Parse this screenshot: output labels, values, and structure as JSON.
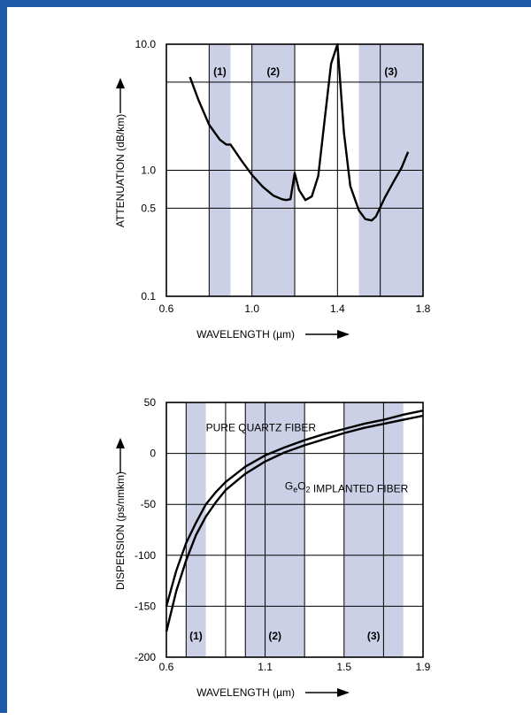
{
  "chart_data": [
    {
      "type": "line",
      "title": "",
      "xlabel": "WAVELENGTH (µm)",
      "ylabel": "ATTENUATION (dB/km)",
      "xlim": [
        0.6,
        1.8
      ],
      "ylim": [
        0.1,
        10.0
      ],
      "yscale": "log",
      "x_ticks": [
        0.6,
        1.0,
        1.4,
        1.8
      ],
      "x_tick_labels": [
        "0.6",
        "1.0",
        "1.4",
        "1.8"
      ],
      "y_ticks": [
        0.1,
        0.5,
        1.0,
        10.0
      ],
      "y_tick_labels": [
        "0.1",
        "0.5",
        "1.0",
        "10.0"
      ],
      "x_gridlines": [
        0.6,
        0.8,
        1.0,
        1.2,
        1.4,
        1.6,
        1.8
      ],
      "y_gridlines": [
        0.1,
        0.5,
        1.0,
        5.0,
        10.0
      ],
      "grid": true,
      "bands": [
        {
          "label": "(1)",
          "from": 0.8,
          "to": 0.9
        },
        {
          "label": "(2)",
          "from": 1.0,
          "to": 1.2
        },
        {
          "label": "(3)",
          "from": 1.5,
          "to": 1.8
        }
      ],
      "series": [
        {
          "x": [
            0.71,
            0.75,
            0.8,
            0.85,
            0.88,
            0.9,
            0.95,
            1.0,
            1.05,
            1.1,
            1.14,
            1.16,
            1.18,
            1.2,
            1.22,
            1.25,
            1.28,
            1.31,
            1.34,
            1.37,
            1.4,
            1.43,
            1.46,
            1.5,
            1.53,
            1.56,
            1.58,
            1.62,
            1.66,
            1.7,
            1.73
          ],
          "y": [
            5.5,
            3.6,
            2.3,
            1.75,
            1.6,
            1.6,
            1.2,
            0.92,
            0.74,
            0.63,
            0.59,
            0.58,
            0.59,
            0.95,
            0.7,
            0.58,
            0.62,
            0.9,
            2.5,
            7.0,
            10.0,
            2.0,
            0.75,
            0.48,
            0.41,
            0.4,
            0.43,
            0.6,
            0.8,
            1.05,
            1.4
          ]
        }
      ]
    },
    {
      "type": "line",
      "title": "",
      "xlabel": "WAVELENGTH (µm)",
      "ylabel": "DISPERSION (ps/nmkm)",
      "xlim": [
        0.6,
        1.9
      ],
      "ylim": [
        -200,
        50
      ],
      "x_ticks": [
        0.6,
        1.1,
        1.5,
        1.9
      ],
      "x_tick_labels": [
        "0.6",
        "1.1",
        "1.5",
        "1.9"
      ],
      "y_ticks": [
        -200,
        -150,
        -100,
        -50,
        0,
        50
      ],
      "y_tick_labels": [
        "-200",
        "-150",
        "-100",
        "-50",
        "0",
        "50"
      ],
      "x_gridlines": [
        0.6,
        0.7,
        0.9,
        1.0,
        1.1,
        1.3,
        1.5,
        1.7,
        1.9
      ],
      "y_gridlines": [
        -200,
        -150,
        -100,
        -50,
        0,
        50
      ],
      "grid": true,
      "bands": [
        {
          "label": "(1)",
          "from": 0.7,
          "to": 0.8
        },
        {
          "label": "(2)",
          "from": 1.0,
          "to": 1.3
        },
        {
          "label": "(3)",
          "from": 1.5,
          "to": 1.8
        }
      ],
      "series": [
        {
          "name": "PURE QUARTZ FIBER",
          "x": [
            0.6,
            0.65,
            0.7,
            0.75,
            0.8,
            0.85,
            0.9,
            1.0,
            1.1,
            1.2,
            1.3,
            1.4,
            1.5,
            1.6,
            1.7,
            1.8,
            1.9
          ],
          "y": [
            -150,
            -115,
            -88,
            -68,
            -50,
            -38,
            -28,
            -13,
            -2,
            6,
            13,
            19,
            24,
            29,
            33,
            38,
            42
          ]
        },
        {
          "name": "GeO2 IMPLANTED FIBER",
          "x": [
            0.6,
            0.65,
            0.7,
            0.75,
            0.8,
            0.85,
            0.9,
            1.0,
            1.1,
            1.2,
            1.3,
            1.4,
            1.5,
            1.6,
            1.7,
            1.8,
            1.9
          ],
          "y": [
            -175,
            -135,
            -105,
            -80,
            -62,
            -48,
            -36,
            -20,
            -8,
            1,
            8,
            14,
            20,
            25,
            29,
            33,
            37
          ]
        }
      ],
      "annotations": [
        {
          "text": "PURE QUARTZ FIBER",
          "series": "PURE QUARTZ FIBER",
          "x": 0.8,
          "y": 22
        },
        {
          "text": "IMPLANTED FIBER",
          "prefix": "GeO2",
          "series": "GeO2 IMPLANTED FIBER",
          "x": 1.2,
          "y": -38
        }
      ]
    }
  ],
  "colors": {
    "band": "#ccd0e6",
    "frame": "#1e5aa6",
    "line": "#000000",
    "grid": "#000000"
  }
}
